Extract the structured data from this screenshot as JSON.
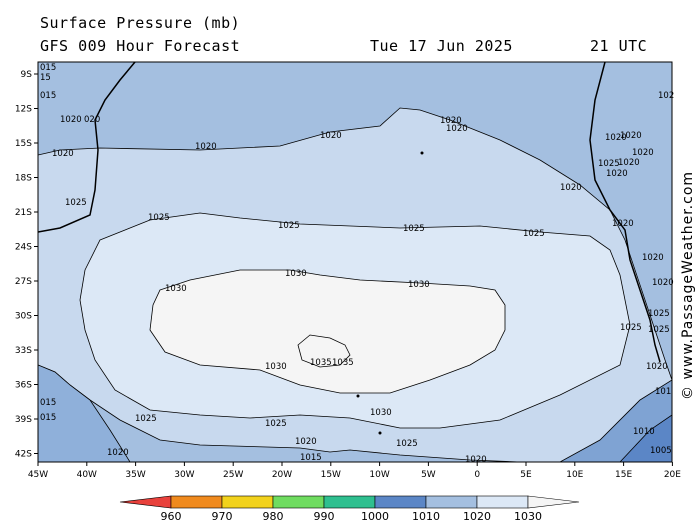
{
  "header": {
    "title": "Surface Pressure (mb)",
    "model": "GFS 009 Hour Forecast",
    "date": "Tue 17 Jun 2025",
    "time": "21 UTC"
  },
  "credit": "© www.PassageWeather.com",
  "map": {
    "lon_labels": [
      "45W",
      "40W",
      "35W",
      "30W",
      "25W",
      "20W",
      "15W",
      "10W",
      "5W",
      "0",
      "5E",
      "10E",
      "15E",
      "20E"
    ],
    "lat_labels": [
      "9S",
      "12S",
      "15S",
      "18S",
      "21S",
      "24S",
      "27S",
      "30S",
      "33S",
      "36S",
      "39S",
      "42S"
    ],
    "isobar_labels": [
      "015",
      "15",
      "015",
      "1020",
      "020",
      "1020",
      "1020",
      "1025",
      "1020",
      "1020",
      "1020",
      "1020",
      "1020",
      "1020",
      "1020",
      "1020",
      "102",
      "1020",
      "1020",
      "1020",
      "1025",
      "1025",
      "1025",
      "1025",
      "1025",
      "1030",
      "1030",
      "1030",
      "1035",
      "1035",
      "1030",
      "1030",
      "1025",
      "1025",
      "1025",
      "1020",
      "1020",
      "1015",
      "1020",
      "1020",
      "1010",
      "1005",
      "1025",
      "1025",
      "1020",
      "101",
      "015",
      "015",
      "1025"
    ]
  },
  "legend": {
    "values": [
      "960",
      "970",
      "980",
      "990",
      "1000",
      "1010",
      "1020",
      "1030"
    ],
    "colors": [
      "#e8413c",
      "#f08a1e",
      "#f2d21c",
      "#6fdc60",
      "#2fbf8f",
      "#5b86c6",
      "#a4bfe0",
      "#dce8f6",
      "#f5f5f5"
    ]
  }
}
